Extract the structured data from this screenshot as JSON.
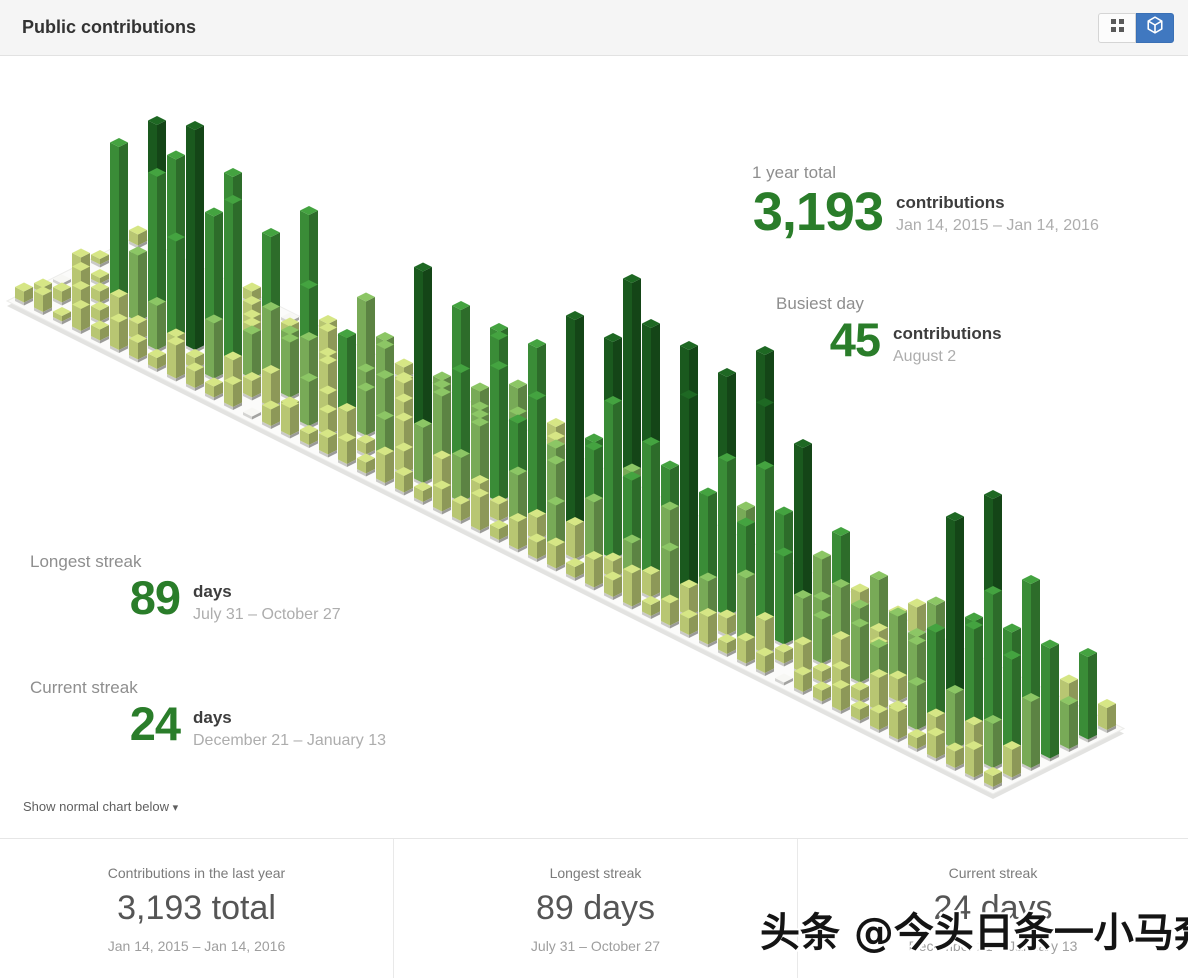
{
  "header": {
    "title": "Public contributions",
    "buttons": [
      {
        "name": "grid-view-button",
        "icon": "grid-view-icon",
        "active": false
      },
      {
        "name": "isometric-view-button",
        "icon": "iso-cube-icon",
        "active": true
      }
    ],
    "active_button_color": "#4078c0"
  },
  "stats": {
    "year_total": {
      "label": "1 year total",
      "value": "3,193",
      "unit": "contributions",
      "range": "Jan 14, 2015 – Jan 14, 2016"
    },
    "busiest_day": {
      "label": "Busiest day",
      "value": "45",
      "unit": "contributions",
      "range": "August 2"
    },
    "longest_streak": {
      "label": "Longest streak",
      "value": "89",
      "unit": "days",
      "range": "July 31 – October 27"
    },
    "current_streak": {
      "label": "Current streak",
      "value": "24",
      "unit": "days",
      "range": "December 21 – January 13"
    }
  },
  "chart_toggle": {
    "label": "Show normal chart below",
    "caret": "▾"
  },
  "footer_panels": [
    {
      "label": "Contributions in the last year",
      "value": "3,193 total",
      "range": "Jan 14, 2015 – Jan 14, 2016"
    },
    {
      "label": "Longest streak",
      "value": "89 days",
      "range": "July 31 – October 27"
    },
    {
      "label": "Current streak",
      "value": "24 days",
      "range": "December 21 – January 13"
    }
  ],
  "watermark": "头条 @今头日条一小马奔腾",
  "chart_data": {
    "type": "isometric-bar",
    "title": "Public contributions (isometric calendar)",
    "x_axis": "weeks (Jan 14, 2015 – Jan 14, 2016)",
    "y_axis": "days of week",
    "z_axis": "contributions per day (bar height, values estimated from pixels)",
    "weeks": 52,
    "days_per_week": 7,
    "palette": [
      "#d6e685",
      "#8cc665",
      "#44a340",
      "#1e6823"
    ],
    "color_thresholds": [
      7,
      14,
      32
    ],
    "summary": {
      "year_total": 3193,
      "busiest_day_count": 45,
      "busiest_day_date": "August 2",
      "longest_streak_days": 89,
      "current_streak_days": 24
    },
    "values": [
      [
        2,
        1,
        0,
        3,
        1,
        2,
        2
      ],
      [
        3,
        2,
        4,
        1,
        2,
        0,
        3
      ],
      [
        1,
        4,
        2,
        6,
        3,
        2,
        5
      ],
      [
        4,
        2,
        30,
        8,
        3,
        12,
        2
      ],
      [
        2,
        6,
        12,
        34,
        26,
        4,
        3
      ],
      [
        5,
        3,
        28,
        10,
        6,
        2,
        8
      ],
      [
        3,
        8,
        18,
        30,
        4,
        12,
        2
      ],
      [
        2,
        4,
        40,
        6,
        28,
        3,
        5
      ],
      [
        6,
        2,
        26,
        12,
        4,
        8,
        0
      ],
      [
        3,
        10,
        30,
        6,
        14,
        2,
        4
      ],
      [
        2,
        5,
        8,
        24,
        6,
        10,
        3
      ],
      [
        4,
        3,
        14,
        8,
        28,
        5,
        2
      ],
      [
        0,
        6,
        10,
        18,
        4,
        2,
        6
      ],
      [
        3,
        2,
        12,
        6,
        8,
        14,
        3
      ],
      [
        5,
        8,
        4,
        10,
        2,
        6,
        2
      ],
      [
        2,
        4,
        16,
        8,
        12,
        3,
        5
      ],
      [
        3,
        6,
        8,
        14,
        6,
        10,
        2
      ],
      [
        4,
        2,
        12,
        6,
        18,
        4,
        8
      ],
      [
        2,
        8,
        6,
        22,
        10,
        3,
        4
      ],
      [
        5,
        4,
        35,
        12,
        6,
        8,
        2
      ],
      [
        3,
        10,
        14,
        28,
        8,
        4,
        6
      ],
      [
        2,
        6,
        20,
        10,
        24,
        12,
        3
      ],
      [
        4,
        8,
        12,
        26,
        6,
        3,
        5
      ],
      [
        3,
        5,
        24,
        14,
        10,
        6,
        2
      ],
      [
        6,
        3,
        16,
        28,
        8,
        12,
        4
      ],
      [
        2,
        10,
        22,
        8,
        18,
        4,
        3
      ],
      [
        5,
        4,
        12,
        30,
        6,
        8,
        2
      ],
      [
        3,
        8,
        40,
        16,
        12,
        5,
        6
      ],
      [
        4,
        6,
        18,
        36,
        45,
        10,
        3
      ],
      [
        2,
        12,
        28,
        14,
        8,
        6,
        4
      ],
      [
        5,
        3,
        16,
        42,
        12,
        8,
        2
      ],
      [
        3,
        8,
        24,
        18,
        38,
        6,
        5
      ],
      [
        6,
        4,
        14,
        30,
        10,
        12,
        3
      ],
      [
        2,
        10,
        36,
        16,
        8,
        4,
        6
      ],
      [
        4,
        5,
        20,
        40,
        14,
        8,
        2
      ],
      [
        3,
        8,
        28,
        12,
        44,
        10,
        5
      ],
      [
        5,
        3,
        18,
        38,
        16,
        6,
        4
      ],
      [
        2,
        12,
        30,
        20,
        10,
        8,
        3
      ],
      [
        4,
        6,
        16,
        34,
        12,
        5,
        2
      ],
      [
        3,
        2,
        10,
        8,
        18,
        6,
        4
      ],
      [
        0,
        5,
        8,
        12,
        6,
        10,
        2
      ],
      [
        3,
        2,
        6,
        10,
        4,
        3,
        5
      ],
      [
        2,
        4,
        10,
        5,
        8,
        2,
        3
      ],
      [
        4,
        2,
        8,
        12,
        6,
        5,
        0
      ],
      [
        2,
        6,
        4,
        10,
        14,
        3,
        4
      ],
      [
        3,
        2,
        12,
        8,
        6,
        10,
        2
      ],
      [
        5,
        8,
        16,
        24,
        10,
        4,
        6
      ],
      [
        2,
        4,
        38,
        18,
        12,
        8,
        3
      ],
      [
        4,
        10,
        20,
        42,
        16,
        6,
        2
      ],
      [
        3,
        6,
        28,
        14,
        24,
        10,
        5
      ],
      [
        5,
        8,
        18,
        30,
        12,
        4,
        3
      ],
      [
        2,
        5,
        12,
        20,
        8,
        15,
        4
      ]
    ]
  }
}
